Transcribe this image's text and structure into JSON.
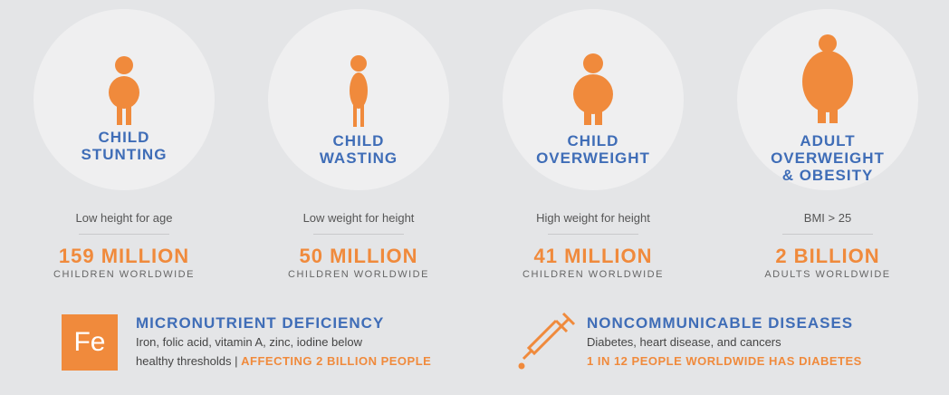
{
  "cards": [
    {
      "title": [
        "CHILD",
        "STUNTING"
      ],
      "description": "Low height for age",
      "figure": "159 MILLION",
      "subject": "CHILDREN WORLDWIDE"
    },
    {
      "title": [
        "CHILD",
        "WASTING"
      ],
      "description": "Low weight for height",
      "figure": "50 MILLION",
      "subject": "CHILDREN WORLDWIDE"
    },
    {
      "title": [
        "CHILD",
        "OVERWEIGHT"
      ],
      "description": "High weight for height",
      "figure": "41 MILLION",
      "subject": "CHILDREN WORLDWIDE"
    },
    {
      "title": [
        "ADULT",
        "OVERWEIGHT",
        "& OBESITY"
      ],
      "description": "BMI > 25",
      "figure": "2 BILLION",
      "subject": "ADULTS WORLDWIDE"
    }
  ],
  "micronutrient": {
    "icon": "Fe",
    "title": "MICRONUTRIENT DEFICIENCY",
    "text": [
      "Iron, folic acid, vitamin A, zinc, iodine below",
      "healthy thresholds |"
    ],
    "highlight": "AFFECTING 2 BILLION PEOPLE"
  },
  "noncommunicable": {
    "title": "NONCOMMUNICABLE DISEASES",
    "text": "Diabetes, heart disease, and cancers",
    "highlight": "1 IN 12 PEOPLE WORLDWIDE HAS DIABETES"
  }
}
